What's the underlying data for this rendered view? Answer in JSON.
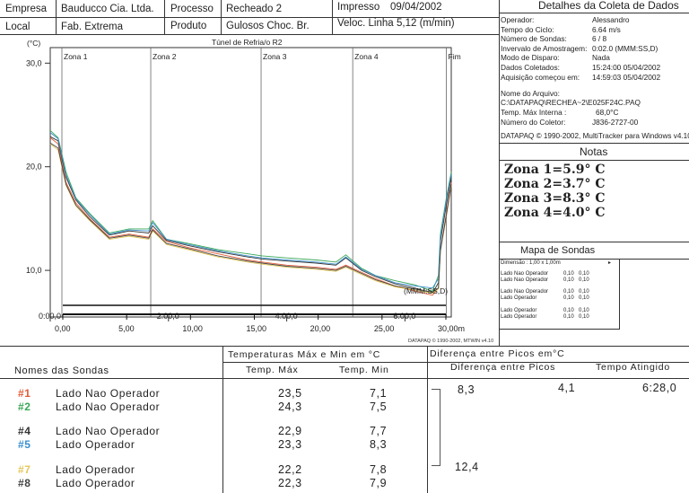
{
  "header": {
    "empresa_label": "Empresa",
    "empresa_value": "Bauducco  Cia. Ltda.",
    "processo_label": "Processo",
    "processo_value": "Recheado 2",
    "impresso_label": "Impresso",
    "impresso_value": "09/04/2002",
    "local_label": "Local",
    "local_value": "Fab. Extrema",
    "produto_label": "Produto",
    "produto_value": "Gulosos Choc. Br.",
    "veloc_label": "Veloc. Linha",
    "veloc_value": "5,12 (m/min)"
  },
  "details": {
    "title": "Detalhes da Coleta de Dados",
    "rows": [
      {
        "label": "Operador:",
        "value": "Alessandro"
      },
      {
        "label": "Tempo do Ciclo:",
        "value": "6.64 m/s"
      },
      {
        "label": "Número de Sondas:",
        "value": "6 / 8"
      },
      {
        "label": "Invervalo de Amostragem:",
        "value": "0:02.0 (MMM:SS,D)"
      },
      {
        "label": "Modo de Disparo:",
        "value": "Nada"
      },
      {
        "label": "Dados Coletados:",
        "value": "15:24:00  05/04/2002"
      },
      {
        "label": "Aquisição começou em:",
        "value": "14:59:03  05/04/2002"
      }
    ],
    "file_label": "Nome do Arquivo:",
    "file_value": "C:\\DATAPAQ\\RECHEA~2\\E025F24C.PAQ",
    "tmax_label": "Temp. Máx Interna :",
    "tmax_value": "68,0°C",
    "collector_label": "Número do Coletor:",
    "collector_value": "J836-2727-00",
    "copyright": "DATAPAQ © 1990-2002, MultiTracker para Windows v4.10"
  },
  "notes": {
    "title": "Notas",
    "lines": [
      "Zona 1=5.9° C",
      "Zona 2=3.7° C",
      "Zona 3=8.3° C",
      "Zona 4=4.0° C"
    ]
  },
  "probe_map": {
    "title": "Mapa de Sondas",
    "dimension": "Dimensão : 1,00 x 1,00m",
    "rows": [
      {
        "name": "Lado Nao Operador",
        "a": "0,10",
        "b": "0,10"
      },
      {
        "name": "Lado Nao Operador",
        "a": "0,10",
        "b": "0,10"
      },
      {
        "name": "Lado Nao Operador",
        "a": "0,10",
        "b": "0,10"
      },
      {
        "name": "Lado Operador",
        "a": "0,10",
        "b": "0,10"
      },
      {
        "name": "Lado Operador",
        "a": "0,10",
        "b": "0,10"
      },
      {
        "name": "Lado Operador",
        "a": "0,10",
        "b": "0,10"
      }
    ]
  },
  "chart_data": {
    "type": "line",
    "title": "Túnel de Refria/o R2",
    "ylabel": "(°C)",
    "xlabel": "(MMM:SS,D)",
    "ylim": [
      5.5,
      31.5
    ],
    "xlim": [
      0,
      407
    ],
    "yticks": [
      {
        "v": 30,
        "label": "30,0"
      },
      {
        "v": 20,
        "label": "20,0"
      },
      {
        "v": 10,
        "label": "10,0"
      }
    ],
    "xticks": [
      {
        "v": 0,
        "label": "0:00,0"
      },
      {
        "v": 120,
        "label": "2:00,0"
      },
      {
        "v": 240,
        "label": "4:00,0"
      },
      {
        "v": 360,
        "label": "6:00,0"
      }
    ],
    "zones": [
      {
        "label": "Zona 1",
        "start": 0
      },
      {
        "label": "Zona 2",
        "start": 102
      },
      {
        "label": "Zona 3",
        "start": 214
      },
      {
        "label": "Zona 4",
        "start": 307
      },
      {
        "label": "Fim",
        "start": 402
      }
    ],
    "distance_ticks": [
      "0,00",
      "5,00",
      "10,00",
      "15,00",
      "20,00",
      "25,00",
      "30,00m"
    ],
    "footer": "DATAPAQ © 1990-2002, MTWIN v4.10",
    "series": [
      {
        "name": "#1",
        "color": "#e25c3a",
        "x": [
          0,
          8,
          16,
          26,
          40,
          60,
          80,
          100,
          104,
          118,
          140,
          170,
          200,
          215,
          240,
          270,
          290,
          300,
          316,
          330,
          350,
          370,
          388,
          394,
          396,
          402,
          407
        ],
        "y": [
          22.8,
          22.2,
          18.5,
          16.5,
          15.0,
          13.2,
          13.5,
          13.2,
          14.0,
          12.8,
          12.2,
          11.6,
          11.0,
          10.8,
          10.5,
          10.3,
          10.1,
          10.5,
          9.8,
          9.2,
          8.5,
          8.0,
          7.6,
          8.3,
          12.0,
          15.5,
          18.5
        ]
      },
      {
        "name": "#2",
        "color": "#3aa857",
        "x": [
          0,
          8,
          16,
          26,
          40,
          60,
          80,
          100,
          104,
          118,
          140,
          170,
          200,
          215,
          240,
          270,
          290,
          300,
          316,
          330,
          350,
          370,
          388,
          394,
          396,
          402,
          407
        ],
        "y": [
          23.5,
          22.8,
          19.5,
          17.0,
          15.5,
          13.6,
          14.0,
          14.0,
          14.8,
          13.0,
          12.6,
          12.0,
          11.6,
          11.4,
          11.2,
          11.0,
          10.8,
          11.5,
          10.2,
          9.5,
          9.0,
          8.6,
          8.0,
          9.5,
          13.5,
          17.0,
          19.5
        ]
      },
      {
        "name": "#4",
        "color": "#333333",
        "x": [
          0,
          8,
          16,
          26,
          40,
          60,
          80,
          100,
          104,
          118,
          140,
          170,
          200,
          215,
          240,
          270,
          290,
          300,
          316,
          330,
          350,
          370,
          388,
          394,
          396,
          402,
          407
        ],
        "y": [
          22.9,
          22.5,
          19.0,
          16.8,
          15.2,
          13.4,
          13.8,
          13.6,
          14.3,
          12.9,
          12.4,
          11.8,
          11.3,
          11.1,
          10.9,
          10.7,
          10.5,
          11.2,
          10.0,
          9.4,
          8.7,
          8.3,
          7.8,
          8.8,
          12.8,
          16.3,
          19.0
        ]
      },
      {
        "name": "#5",
        "color": "#3a8fd0",
        "x": [
          0,
          8,
          16,
          26,
          40,
          60,
          80,
          100,
          104,
          118,
          140,
          170,
          200,
          215,
          240,
          270,
          290,
          300,
          316,
          330,
          350,
          370,
          388,
          394,
          396,
          402,
          407
        ],
        "y": [
          23.3,
          22.7,
          19.2,
          16.9,
          15.4,
          13.5,
          13.9,
          13.8,
          14.6,
          13.0,
          12.5,
          11.9,
          11.4,
          11.2,
          11.0,
          10.8,
          10.6,
          11.3,
          10.1,
          9.5,
          8.8,
          8.5,
          8.3,
          9.2,
          13.2,
          16.8,
          19.3
        ]
      },
      {
        "name": "#7",
        "color": "#e3c85a",
        "x": [
          0,
          8,
          16,
          26,
          40,
          60,
          80,
          100,
          104,
          118,
          140,
          170,
          200,
          215,
          240,
          270,
          290,
          300,
          316,
          330,
          350,
          370,
          388,
          394,
          396,
          402,
          407
        ],
        "y": [
          22.2,
          21.6,
          18.2,
          16.2,
          14.8,
          13.0,
          13.3,
          13.0,
          13.8,
          12.5,
          12.0,
          11.3,
          10.8,
          10.6,
          10.3,
          10.1,
          9.9,
          10.3,
          9.6,
          9.0,
          8.4,
          8.1,
          7.8,
          8.2,
          11.8,
          15.2,
          18.2
        ]
      },
      {
        "name": "#8",
        "color": "#444444",
        "x": [
          0,
          8,
          16,
          26,
          40,
          60,
          80,
          100,
          104,
          118,
          140,
          170,
          200,
          215,
          240,
          270,
          290,
          300,
          316,
          330,
          350,
          370,
          388,
          394,
          396,
          402,
          407
        ],
        "y": [
          22.3,
          21.8,
          18.3,
          16.3,
          14.9,
          13.1,
          13.4,
          13.1,
          13.9,
          12.6,
          12.1,
          11.4,
          10.9,
          10.7,
          10.4,
          10.2,
          10.0,
          10.4,
          9.7,
          9.1,
          8.5,
          8.2,
          7.9,
          8.3,
          11.9,
          15.3,
          18.3
        ]
      }
    ]
  },
  "table": {
    "names_header": "Nomes das Sondas",
    "temps_header": "Temperaturas Máx e Min em °C",
    "tmax_header": "Temp. Máx",
    "tmin_header": "Temp. Min",
    "peaks_header": "Diferença entre Picos em°C",
    "diff_header": "Diferença entre Picos",
    "time_header": "Tempo Atingido",
    "rows": [
      {
        "id": "#1",
        "color": "#e25c3a",
        "name": "Lado Nao Operador",
        "tmax": "23,5",
        "tmin": "7,1"
      },
      {
        "id": "#2",
        "color": "#3aa857",
        "name": "Lado Nao Operador",
        "tmax": "24,3",
        "tmin": "7,5"
      },
      {
        "id": "#4",
        "color": "#333333",
        "name": "Lado Nao Operador",
        "tmax": "22,9",
        "tmin": "7,7"
      },
      {
        "id": "#5",
        "color": "#3a8fd0",
        "name": "Lado Operador",
        "tmax": "23,3",
        "tmin": "8,3"
      },
      {
        "id": "#7",
        "color": "#e3c85a",
        "name": "Lado Operador",
        "tmax": "22,2",
        "tmin": "7,8"
      },
      {
        "id": "#8",
        "color": "#444444",
        "name": "Lado Operador",
        "tmax": "22,3",
        "tmin": "7,9"
      }
    ],
    "peak_max": "8,3",
    "peak_diff": "4,1",
    "peak_time": "6:28,0",
    "peak_min": "12,4"
  }
}
